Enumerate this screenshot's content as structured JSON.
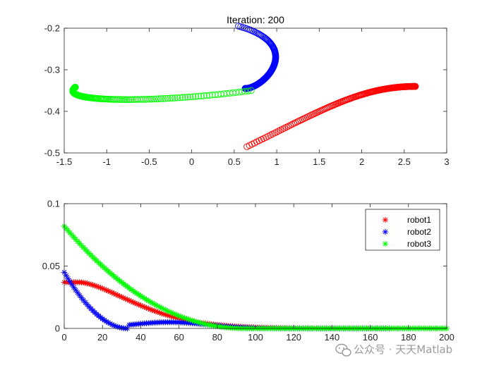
{
  "chart_data": [
    {
      "type": "scatter",
      "title": "Iteration: 200",
      "xlim": [
        -1.5,
        3
      ],
      "ylim": [
        -0.5,
        -0.2
      ],
      "xticks": [
        -1.5,
        -1,
        -0.5,
        0,
        0.5,
        1,
        1.5,
        2,
        2.5,
        3
      ],
      "yticks": [
        -0.5,
        -0.4,
        -0.3,
        -0.2
      ],
      "xtick_labels": [
        "-1.5",
        "-1",
        "-0.5",
        "0",
        "0.5",
        "1",
        "1.5",
        "2",
        "2.5",
        "3"
      ],
      "ytick_labels": [
        "-0.5",
        "-0.4",
        "-0.3",
        "-0.2"
      ],
      "marker": "o",
      "series": [
        {
          "name": "robot1",
          "color": "#ff0000",
          "control": [
            [
              0.65,
              -0.485
            ],
            [
              1.55,
              -0.395
            ],
            [
              2.0,
              -0.34
            ],
            [
              2.63,
              -0.34
            ]
          ],
          "n": 200
        },
        {
          "name": "robot2",
          "color": "#0000ff",
          "control": [
            [
              0.55,
              -0.195
            ],
            [
              1.35,
              -0.24
            ],
            [
              0.85,
              -0.345
            ],
            [
              0.63,
              -0.345
            ]
          ],
          "n": 200
        },
        {
          "name": "robot3",
          "color": "#00ff00",
          "control": [
            [
              0.7,
              -0.35
            ],
            [
              -0.4,
              -0.38
            ],
            [
              -1.6,
              -0.38
            ],
            [
              -1.37,
              -0.342
            ]
          ],
          "n": 200
        }
      ]
    },
    {
      "type": "scatter",
      "xlim": [
        0,
        200
      ],
      "ylim": [
        0,
        0.1
      ],
      "xticks": [
        0,
        20,
        40,
        60,
        80,
        100,
        120,
        140,
        160,
        180,
        200
      ],
      "yticks": [
        0,
        0.05,
        0.1
      ],
      "xtick_labels": [
        "0",
        "20",
        "40",
        "60",
        "80",
        "100",
        "120",
        "140",
        "160",
        "180",
        "200"
      ],
      "ytick_labels": [
        "0",
        "0.05",
        "0.1"
      ],
      "marker": "*",
      "legend": "top-right",
      "series": [
        {
          "name": "robot1",
          "color": "#ff0000",
          "x_end": 170,
          "start": 0.037,
          "plateau": 0.037,
          "decay_start": 8,
          "scale": 40
        },
        {
          "name": "robot2",
          "color": "#0000ff",
          "x_end": 170,
          "start": 0.045,
          "dip_at": 33,
          "bump": 0.005,
          "bump_at": 55
        },
        {
          "name": "robot3",
          "color": "#00ff00",
          "x_end": 200,
          "start": 0.082,
          "zero_at": 95
        }
      ]
    }
  ],
  "watermark": {
    "text": "公众号 · 天天Matlab"
  }
}
